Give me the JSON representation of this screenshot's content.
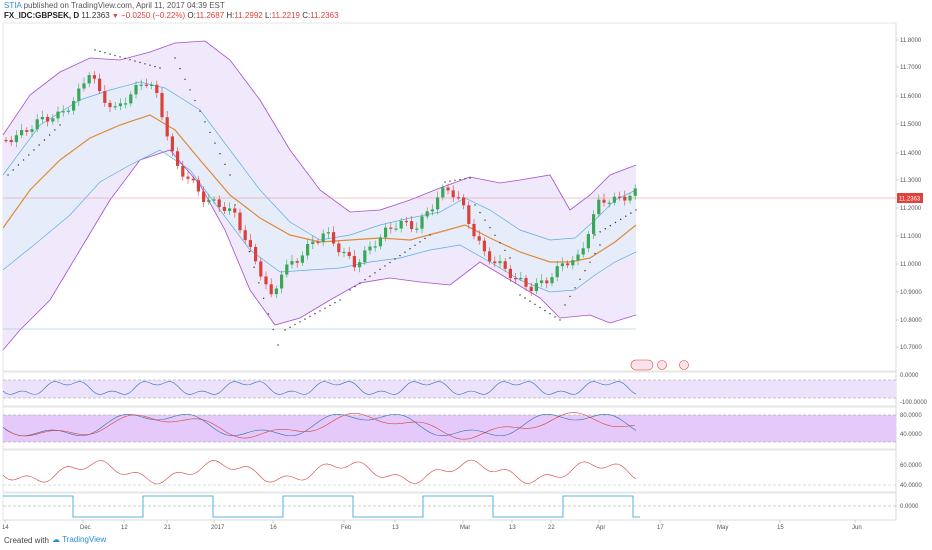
{
  "header": {
    "user": "STIA",
    "published": "published on TradingView.com, April 11, 2017 04:39 EST",
    "symbol": "FX_IDC:GBPSEK, D",
    "last": "11.2363",
    "change": "−0.0250 (−0.22%)",
    "o_label": "O:",
    "o_value": "11.2687",
    "h_label": "H:",
    "h_value": "11.2992",
    "l_label": "L:",
    "l_value": "11.2219",
    "c_label": "C:",
    "c_value": "11.2363"
  },
  "footer": {
    "created_with": "Created with",
    "brand": "TradingView"
  },
  "price_axis": {
    "ticks": [
      "11.8000",
      "11.7000",
      "11.6000",
      "11.5000",
      "11.4000",
      "11.3000",
      "11.2000",
      "11.1000",
      "11.0000",
      "10.9000",
      "10.8000",
      "10.7000"
    ],
    "current": "11.2363"
  },
  "osc1_axis": {
    "ticks": [
      "0.0000",
      "-100.0000"
    ]
  },
  "osc2_axis": {
    "ticks": [
      "80.0000",
      "40.0000"
    ]
  },
  "osc3_axis": {
    "ticks": [
      "60.0000",
      "40.0000"
    ]
  },
  "osc4_axis": {
    "ticks": [
      "0.0000"
    ]
  },
  "time_axis": {
    "labels": [
      "14",
      "Dec",
      "12",
      "21",
      "2017",
      "16",
      "Feb",
      "13",
      "Mar",
      "13",
      "22",
      "Apr",
      "17",
      "May",
      "15",
      "Jun"
    ]
  },
  "colors": {
    "up": "#3aa757",
    "down": "#d9413a",
    "band": "#a64dd1",
    "band_fill": "#efe9fb",
    "inner_band": "#5aaee0",
    "basis": "#e08a3a",
    "osc_fill": "#e6c9fa",
    "price_line": "#e88f8f",
    "cci": "#2f6fb5"
  }
}
